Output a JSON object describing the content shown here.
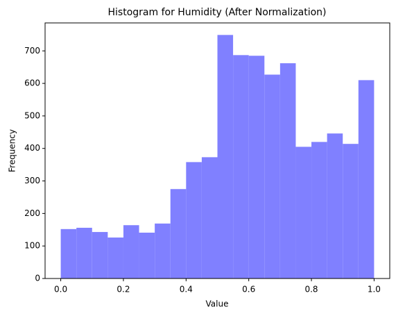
{
  "chart_data": {
    "type": "histogram",
    "title": "Histogram for Humidity (After Normalization)",
    "x_label": "Value",
    "y_label": "Frequency",
    "color": "#8080ff",
    "bins": [
      0,
      0.05,
      0.1,
      0.15,
      0.2,
      0.25,
      0.3,
      0.35,
      0.4,
      0.45,
      0.5,
      0.55,
      0.6,
      0.65,
      0.7,
      0.75,
      0.8,
      0.85,
      0.9,
      0.95,
      1
    ],
    "values": [
      152,
      156,
      143,
      126,
      164,
      141,
      169,
      275,
      358,
      373,
      749,
      687,
      685,
      627,
      662,
      405,
      420,
      446,
      414,
      610
    ],
    "xlim": [
      -0.05,
      1.05
    ],
    "ylim": [
      0,
      786
    ],
    "xticks": [
      {
        "value": 0,
        "label": "0.0"
      },
      {
        "value": 0.2,
        "label": "0.2"
      },
      {
        "value": 0.4,
        "label": "0.4"
      },
      {
        "value": 0.6,
        "label": "0.6"
      },
      {
        "value": 0.8,
        "label": "0.8"
      },
      {
        "value": 1,
        "label": "1.0"
      }
    ],
    "yticks": [
      0,
      100,
      200,
      300,
      400,
      500,
      600,
      700
    ]
  }
}
